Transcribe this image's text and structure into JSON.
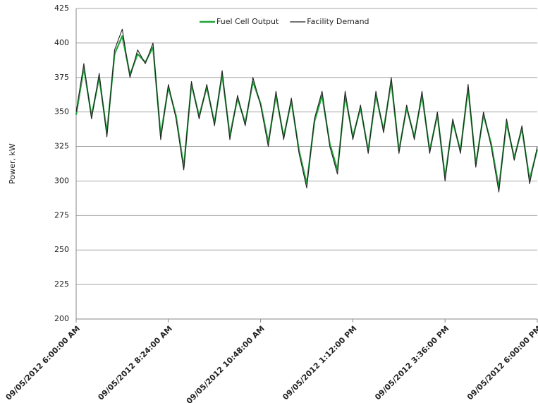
{
  "chart_data": {
    "type": "line",
    "y_label": "Power, kW",
    "x": [
      "09/05/2012 6:00:00 AM",
      "09/05/2012 6:12:00 AM",
      "09/05/2012 6:24:00 AM",
      "09/05/2012 6:36:00 AM",
      "09/05/2012 6:48:00 AM",
      "09/05/2012 7:00:00 AM",
      "09/05/2012 7:12:00 AM",
      "09/05/2012 7:24:00 AM",
      "09/05/2012 7:36:00 AM",
      "09/05/2012 7:48:00 AM",
      "09/05/2012 8:00:00 AM",
      "09/05/2012 8:12:00 AM",
      "09/05/2012 8:24:00 AM",
      "09/05/2012 8:36:00 AM",
      "09/05/2012 8:48:00 AM",
      "09/05/2012 9:00:00 AM",
      "09/05/2012 9:12:00 AM",
      "09/05/2012 9:24:00 AM",
      "09/05/2012 9:36:00 AM",
      "09/05/2012 9:48:00 AM",
      "09/05/2012 10:00:00 AM",
      "09/05/2012 10:12:00 AM",
      "09/05/2012 10:24:00 AM",
      "09/05/2012 10:36:00 AM",
      "09/05/2012 10:48:00 AM",
      "09/05/2012 11:00:00 AM",
      "09/05/2012 11:12:00 AM",
      "09/05/2012 11:24:00 AM",
      "09/05/2012 11:36:00 AM",
      "09/05/2012 11:48:00 AM",
      "09/05/2012 12:00:00 PM",
      "09/05/2012 12:12:00 PM",
      "09/05/2012 12:24:00 PM",
      "09/05/2012 12:36:00 PM",
      "09/05/2012 12:48:00 PM",
      "09/05/2012 1:00:00 PM",
      "09/05/2012 1:12:00 PM",
      "09/05/2012 1:24:00 PM",
      "09/05/2012 1:36:00 PM",
      "09/05/2012 1:48:00 PM",
      "09/05/2012 2:00:00 PM",
      "09/05/2012 2:12:00 PM",
      "09/05/2012 2:24:00 PM",
      "09/05/2012 2:36:00 PM",
      "09/05/2012 2:48:00 PM",
      "09/05/2012 3:00:00 PM",
      "09/05/2012 3:12:00 PM",
      "09/05/2012 3:24:00 PM",
      "09/05/2012 3:36:00 PM",
      "09/05/2012 3:48:00 PM",
      "09/05/2012 4:00:00 PM",
      "09/05/2012 4:12:00 PM",
      "09/05/2012 4:24:00 PM",
      "09/05/2012 4:36:00 PM",
      "09/05/2012 4:48:00 PM",
      "09/05/2012 5:00:00 PM",
      "09/05/2012 5:12:00 PM",
      "09/05/2012 5:24:00 PM",
      "09/05/2012 5:36:00 PM",
      "09/05/2012 5:48:00 PM",
      "09/05/2012 6:00:00 PM"
    ],
    "series": [
      {
        "name": "Fuel Cell Output",
        "color": "#22a33c",
        "values": [
          348,
          382,
          347,
          375,
          335,
          392,
          405,
          377,
          392,
          386,
          397,
          333,
          368,
          347,
          310,
          370,
          347,
          368,
          342,
          377,
          333,
          360,
          342,
          372,
          356,
          328,
          362,
          332,
          358,
          322,
          298,
          343,
          362,
          327,
          308,
          362,
          332,
          353,
          322,
          362,
          337,
          372,
          322,
          353,
          332,
          362,
          322,
          348,
          303,
          343,
          322,
          367,
          312,
          348,
          327,
          295,
          342,
          317,
          338,
          301,
          323
        ]
      },
      {
        "name": "Facility Demand",
        "color": "#222222",
        "values": [
          350,
          385,
          345,
          378,
          332,
          395,
          410,
          375,
          395,
          385,
          400,
          330,
          370,
          345,
          308,
          372,
          345,
          370,
          340,
          380,
          330,
          362,
          340,
          375,
          355,
          325,
          365,
          330,
          360,
          320,
          295,
          345,
          365,
          325,
          305,
          365,
          330,
          355,
          320,
          365,
          335,
          375,
          320,
          355,
          330,
          365,
          320,
          350,
          300,
          345,
          320,
          370,
          310,
          350,
          325,
          292,
          345,
          315,
          340,
          298,
          325
        ]
      }
    ],
    "xlim": [
      "09/05/2012 6:00:00 AM",
      "09/05/2012 6:00:00 PM"
    ],
    "xticks": [
      "09/05/2012 6:00:00 AM",
      "09/05/2012 8:24:00 AM",
      "09/05/2012 10:48:00 AM",
      "09/05/2012 1:12:00 PM",
      "09/05/2012 3:36:00 PM",
      "09/05/2012 6:00:00 PM"
    ],
    "ylim": [
      200,
      425
    ],
    "yticks": [
      200,
      225,
      250,
      275,
      300,
      325,
      350,
      375,
      400,
      425
    ],
    "grid": true,
    "legend": "top"
  }
}
